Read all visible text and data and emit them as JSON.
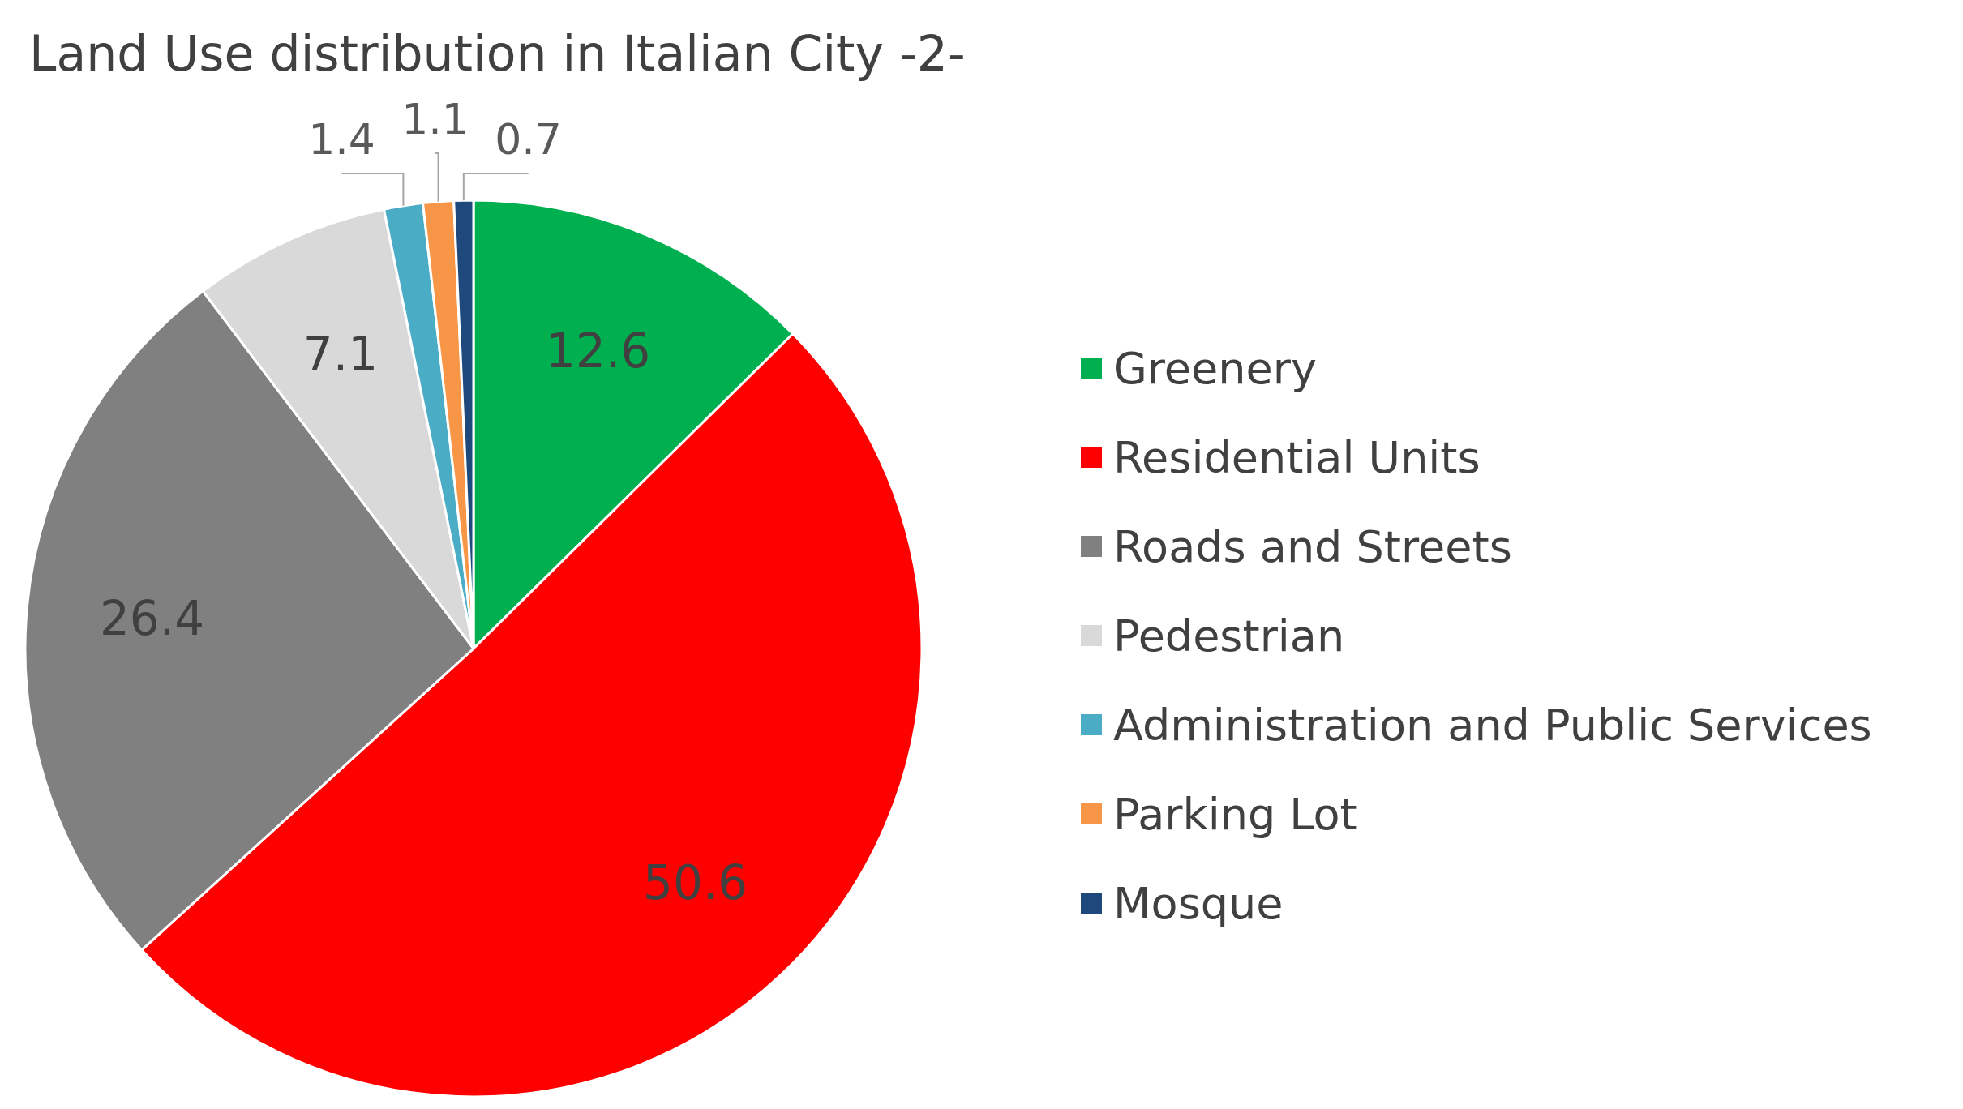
{
  "chart_data": {
    "type": "pie",
    "title": "Land Use distribution in Italian City -2-",
    "categories": [
      "Greenery",
      "Residential Units",
      "Roads and Streets",
      "Pedestrian",
      "Administration and Public Services",
      "Parking Lot",
      "Mosque"
    ],
    "values": [
      12.6,
      50.6,
      26.4,
      7.1,
      1.4,
      1.1,
      0.7
    ],
    "colors": [
      "#00b050",
      "#ff0000",
      "#808080",
      "#d9d9d9",
      "#4bacc6",
      "#f79646",
      "#1f497d"
    ],
    "data_labels": true,
    "legend": "right"
  }
}
